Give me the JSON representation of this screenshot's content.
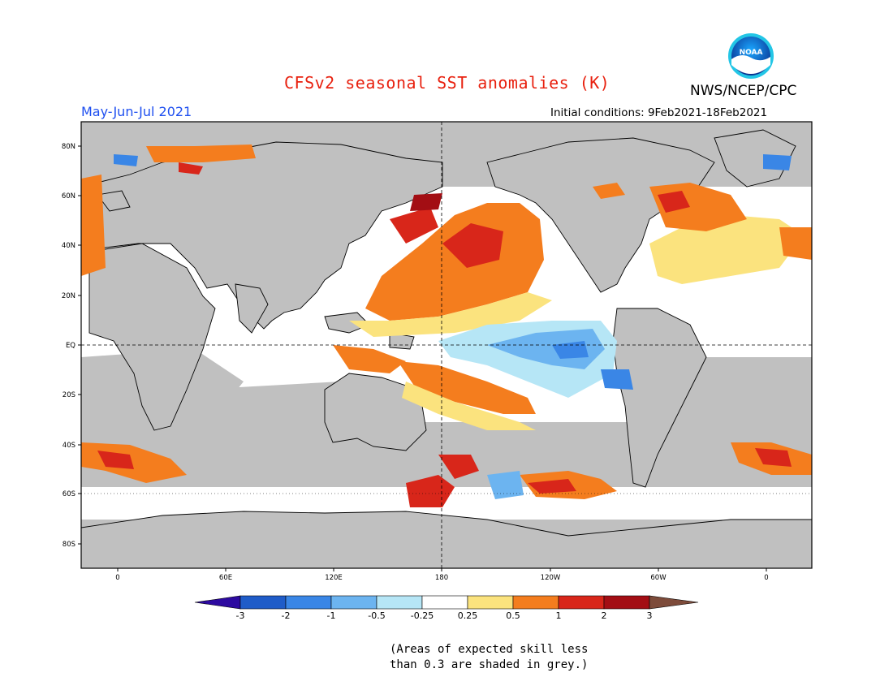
{
  "header": {
    "title": "CFSv2 seasonal SST anomalies (K)",
    "period": "May-Jun-Jul 2021",
    "initial_conditions": "Initial conditions: 9Feb2021-18Feb2021",
    "agency": "NWS/NCEP/CPC",
    "logo_text": "NOAA"
  },
  "map": {
    "lat_labels": [
      "80N",
      "60N",
      "40N",
      "20N",
      "EQ",
      "20S",
      "40S",
      "60S",
      "80S"
    ],
    "lon_labels": [
      "0",
      "60E",
      "120E",
      "180",
      "120W",
      "60W",
      "0"
    ],
    "land_color": "#c0c0c0",
    "grey_skill_color": "#c0c0c0"
  },
  "colorbar": {
    "labels": [
      "-3",
      "-2",
      "-1",
      "-0.5",
      "-0.25",
      "0.25",
      "0.5",
      "1",
      "2",
      "3"
    ],
    "colors": [
      "#2d0aa0",
      "#1f5cc8",
      "#3a86e6",
      "#6cb4f0",
      "#b6e6f6",
      "#ffffff",
      "#fbe37e",
      "#f47d1e",
      "#d8261a",
      "#a30e14",
      "#7d4b3a"
    ]
  },
  "footnote": {
    "line1": "(Areas of expected skill less",
    "line2": "than 0.3 are shaded in grey.)"
  }
}
